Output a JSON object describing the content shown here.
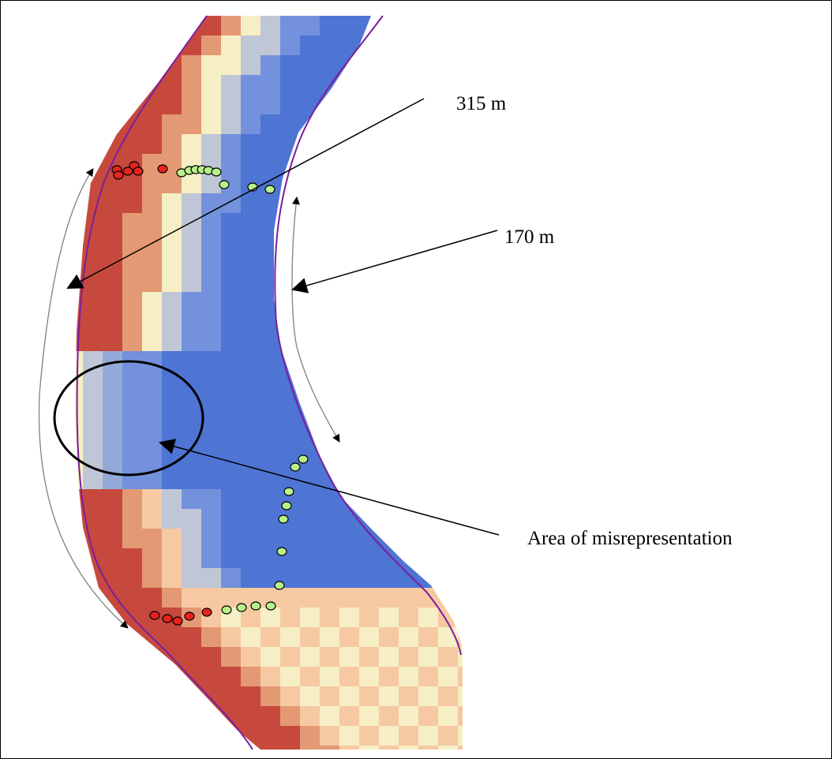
{
  "labels": {
    "outer_bend_length": "315 m",
    "inner_bend_length": "170 m",
    "misrepresentation_area": "Area of misrepresentation"
  },
  "colors": {
    "red": "#c7493d",
    "orange": "#e39a74",
    "peach": "#f6c9a2",
    "cream": "#f6eec4",
    "grey_blue": "#bfc7d6",
    "light_blue": "#95a9d8",
    "mid_blue": "#7391dc",
    "blue": "#4e74d4",
    "bank_line": "#7a1f9c",
    "red_marker": "#e8231e",
    "green_marker": "#b8f08a"
  }
}
